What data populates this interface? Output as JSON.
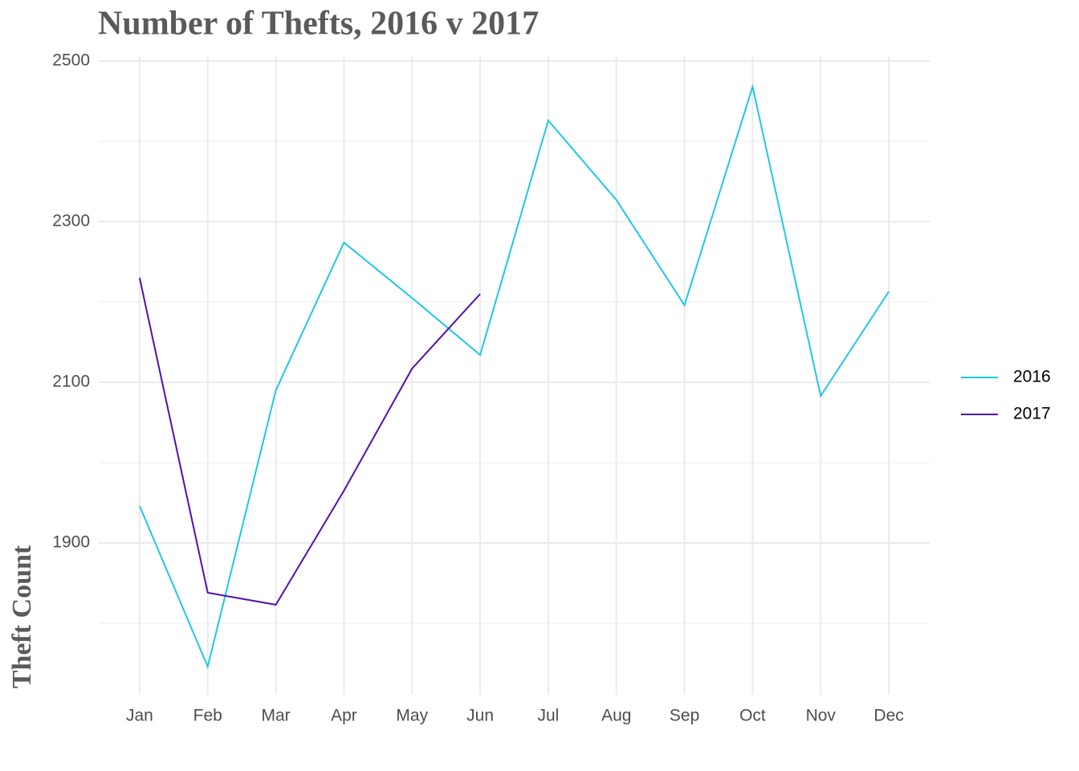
{
  "chart_data": {
    "type": "line",
    "title": "Number of Thefts, 2016 v 2017",
    "y_label": "Theft Count",
    "categories": [
      "Jan",
      "Feb",
      "Mar",
      "Apr",
      "May",
      "Jun",
      "Jul",
      "Aug",
      "Sep",
      "Oct",
      "Nov",
      "Dec"
    ],
    "series": [
      {
        "name": "2016",
        "color": "#1ec8e6",
        "values": [
          1946,
          1746,
          2090,
          2274,
          2205,
          2134,
          2426,
          2327,
          2196,
          2468,
          2083,
          2213
        ]
      },
      {
        "name": "2017",
        "color": "#5010b0",
        "values": [
          2230,
          1838,
          1823,
          1965,
          2117,
          2210,
          null,
          null,
          null,
          null,
          null,
          null
        ]
      }
    ],
    "ylim": [
      1711,
      2506
    ],
    "yticks": [
      1900,
      2100,
      2300,
      2500
    ],
    "grid": true,
    "minor_grid": true,
    "legend": "right"
  }
}
